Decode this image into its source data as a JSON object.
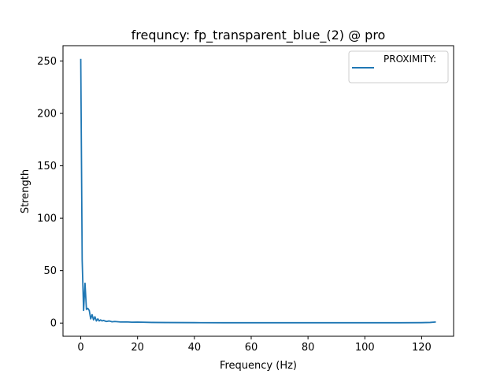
{
  "chart_data": {
    "type": "line",
    "title": "frequncy: fp_transparent_blue_(2) @ pro",
    "xlabel": "Frequency (Hz)",
    "ylabel": "Strength",
    "xlim": [
      -6.25,
      131.25
    ],
    "ylim": [
      -12.6,
      264.6
    ],
    "xticks": [
      0,
      20,
      40,
      60,
      80,
      100,
      120
    ],
    "yticks": [
      0,
      50,
      100,
      150,
      200,
      250
    ],
    "grid": false,
    "legend_position": "top-right",
    "series": [
      {
        "name": "PROXIMITY:",
        "color": "#1f77b4",
        "x": [
          0,
          0.5,
          1.0,
          1.5,
          2.0,
          2.5,
          3.0,
          3.5,
          4.0,
          4.5,
          5.0,
          5.5,
          6.0,
          6.5,
          7.0,
          7.5,
          8.0,
          9.0,
          10.0,
          11.0,
          12.0,
          14.0,
          16.0,
          18.0,
          20.0,
          25.0,
          30.0,
          40.0,
          50.0,
          60.0,
          70.0,
          80.0,
          90.0,
          100.0,
          110.0,
          120.0,
          123.0,
          125.0
        ],
        "y": [
          252,
          60,
          12,
          38,
          13,
          14,
          12,
          4,
          8,
          3,
          6,
          2,
          4,
          2,
          3,
          2,
          2.5,
          1.5,
          2,
          1.2,
          1.5,
          1.0,
          1.1,
          0.8,
          0.9,
          0.6,
          0.5,
          0.4,
          0.3,
          0.3,
          0.3,
          0.3,
          0.3,
          0.3,
          0.3,
          0.4,
          0.6,
          1.0
        ]
      }
    ]
  }
}
